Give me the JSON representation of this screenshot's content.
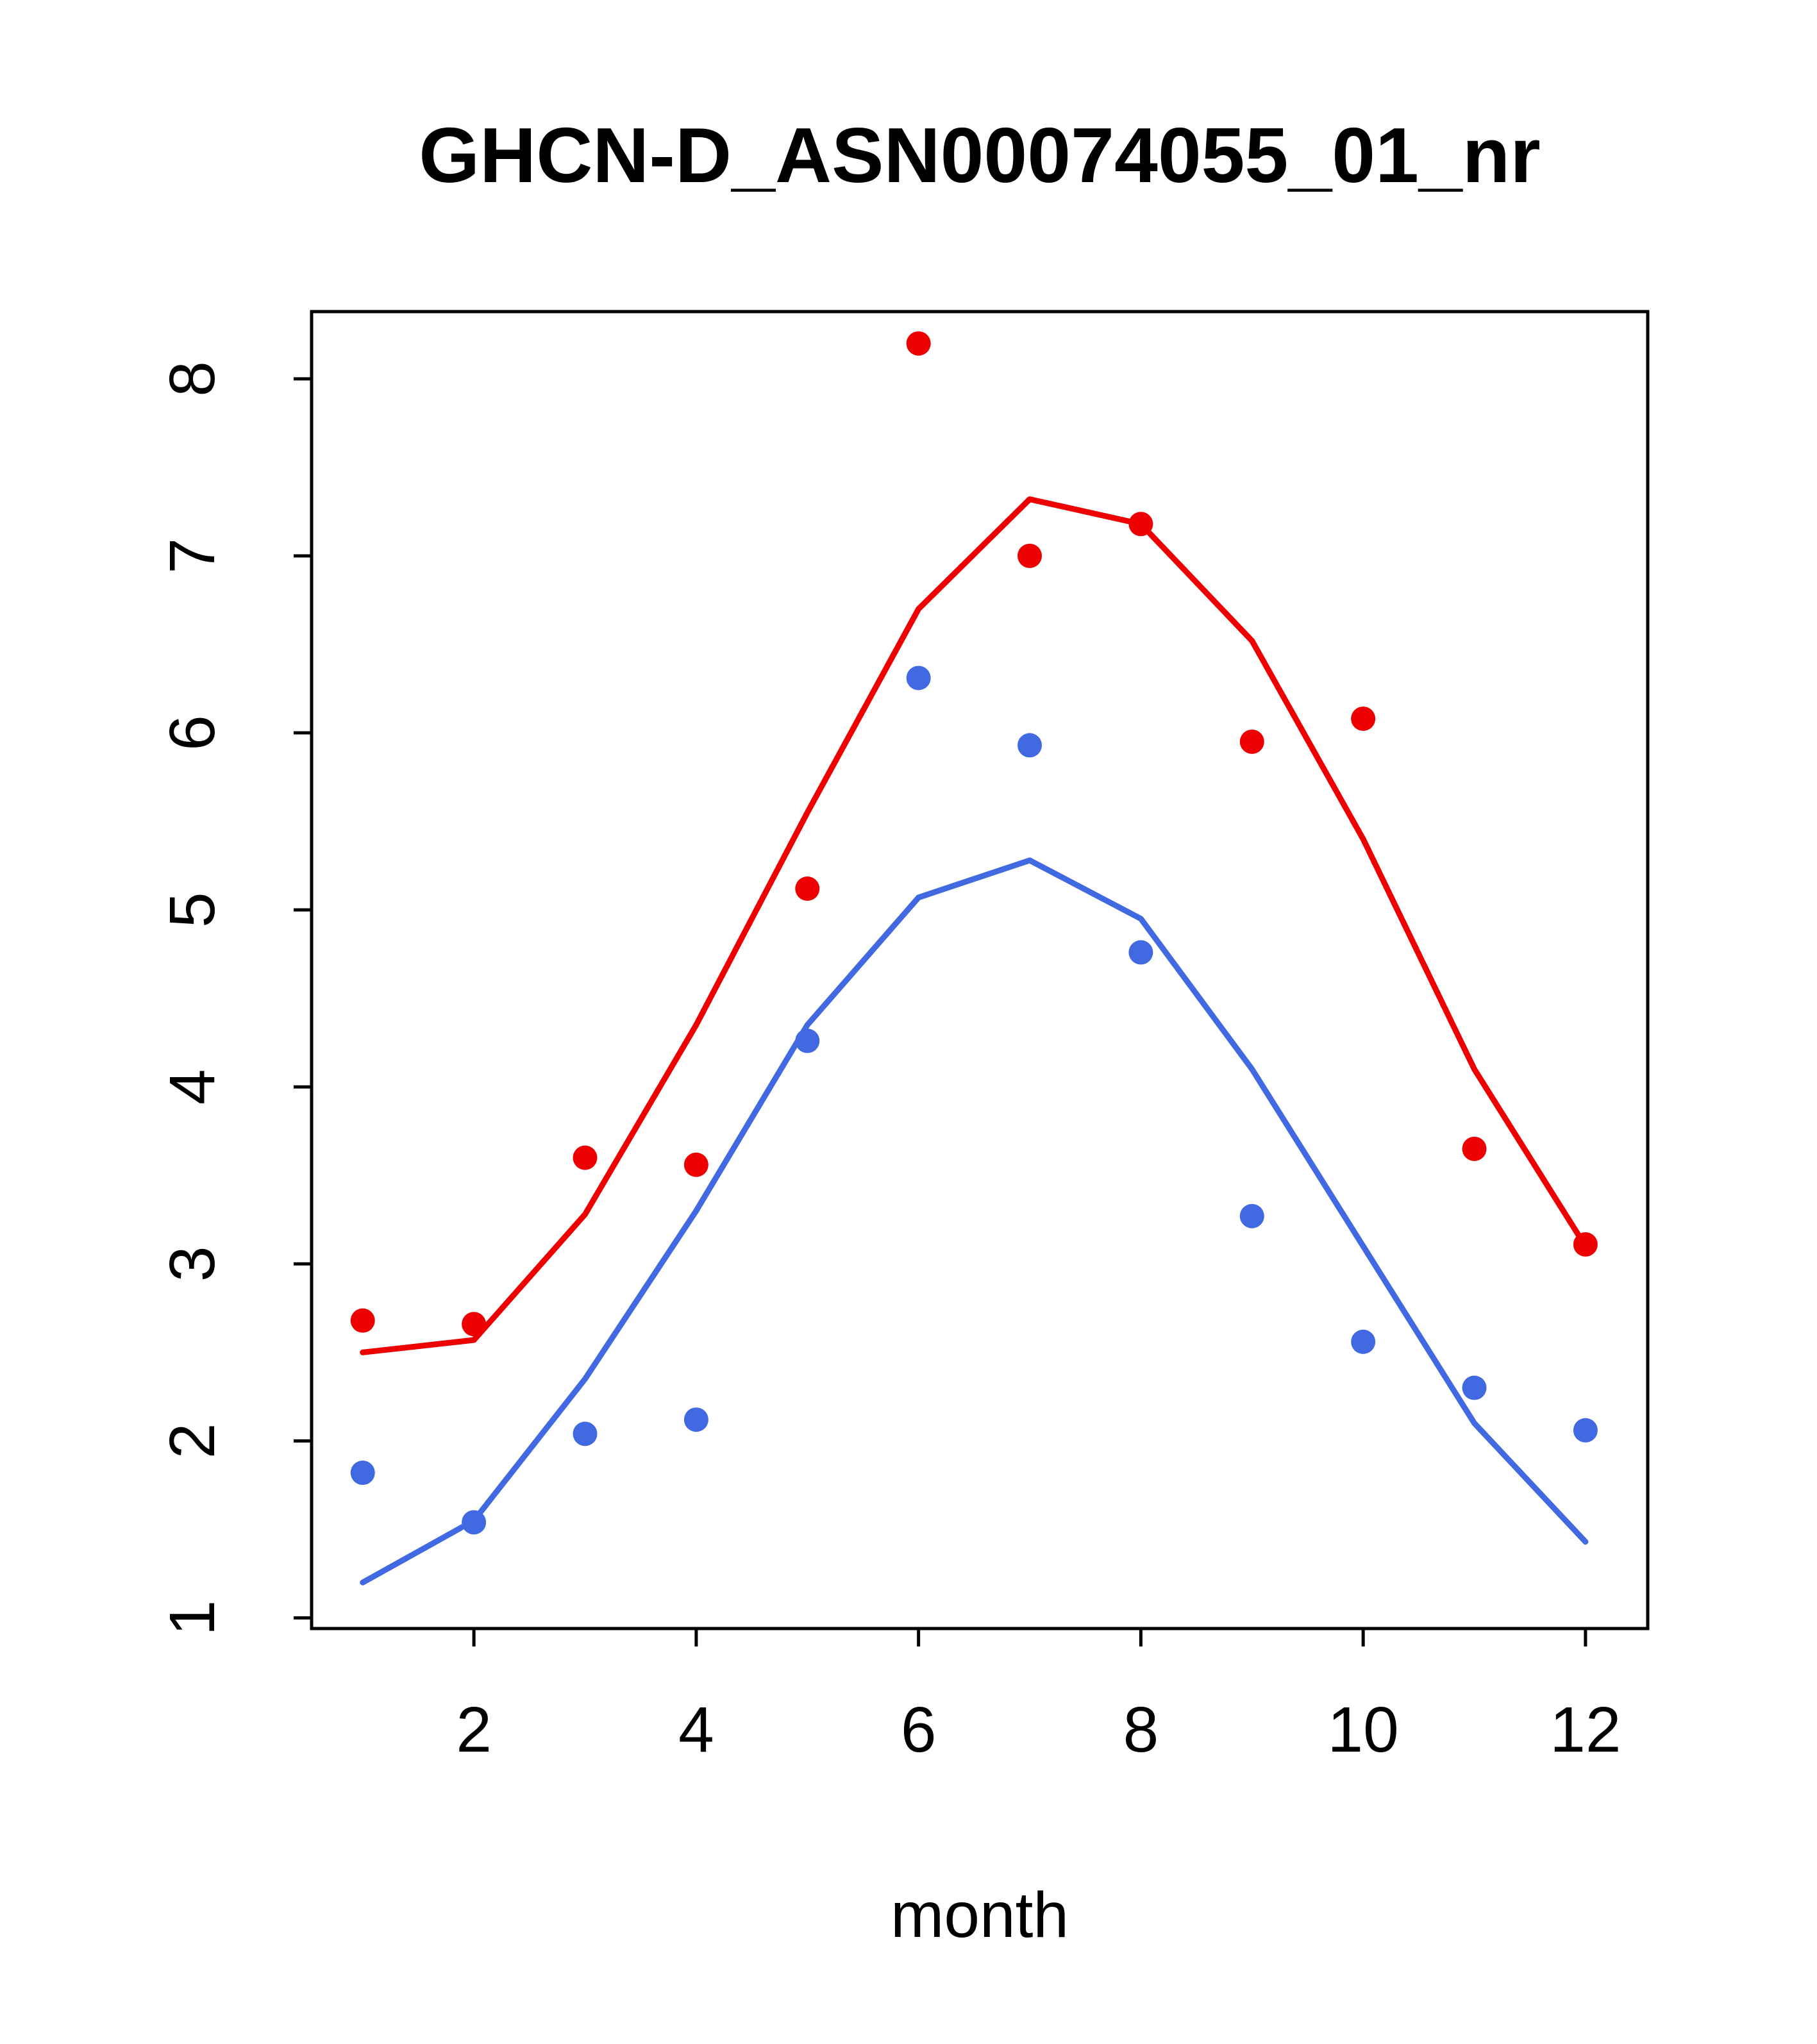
{
  "title": "GHCN-D_ASN00074055_01_nr",
  "chart_data": {
    "type": "line",
    "title": "GHCN-D_ASN00074055_01_nr",
    "xlabel": "month",
    "ylabel": "",
    "x": [
      1,
      2,
      3,
      4,
      5,
      6,
      7,
      8,
      9,
      10,
      11,
      12
    ],
    "xlim": [
      0.54,
      12.56
    ],
    "ylim": [
      0.94,
      8.38
    ],
    "x_ticks": [
      2,
      4,
      6,
      8,
      10,
      12
    ],
    "y_ticks": [
      1,
      2,
      3,
      4,
      5,
      6,
      7,
      8
    ],
    "grid": false,
    "legend": "none",
    "colors": {
      "red": "#ee0000",
      "blue": "#4169e1"
    },
    "series": [
      {
        "name": "red-line",
        "type": "line",
        "color": "#ee0000",
        "values": [
          2.5,
          2.57,
          3.28,
          4.35,
          5.55,
          6.7,
          7.32,
          7.18,
          6.52,
          5.4,
          4.1,
          3.1
        ]
      },
      {
        "name": "blue-line",
        "type": "line",
        "color": "#4169e1",
        "values": [
          1.2,
          1.55,
          2.35,
          3.3,
          4.35,
          5.07,
          5.28,
          4.95,
          4.1,
          3.1,
          2.1,
          1.43
        ]
      },
      {
        "name": "red-points",
        "type": "scatter",
        "color": "#ee0000",
        "values": [
          2.68,
          2.66,
          3.6,
          3.56,
          5.12,
          8.2,
          7.0,
          7.18,
          5.95,
          6.08,
          3.65,
          3.11
        ]
      },
      {
        "name": "blue-points",
        "type": "scatter",
        "color": "#4169e1",
        "values": [
          1.82,
          1.54,
          2.04,
          2.12,
          4.26,
          6.31,
          5.93,
          4.76,
          3.27,
          2.56,
          2.3,
          2.06
        ]
      }
    ]
  }
}
